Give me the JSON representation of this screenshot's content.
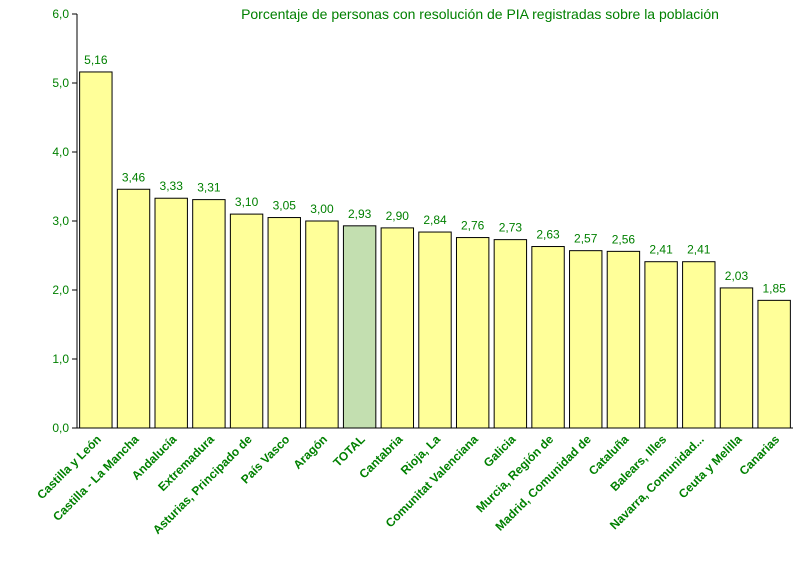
{
  "chart_data": {
    "type": "bar",
    "title": "Porcentaje de personas con resolución de PIA registradas sobre la población",
    "categories": [
      "Castilla y León",
      "Castilla - La Mancha",
      "Andalucía",
      "Extremadura",
      "Asturias, Principado de",
      "País Vasco",
      "Aragón",
      "TOTAL",
      "Cantabria",
      "Rioja, La",
      "Comunitat Valenciana",
      "Galicia",
      "Murcia, Región de",
      "Madrid, Comunidad de",
      "Cataluña",
      "Balears, Illes",
      "Navarra, Comunidad...",
      "Ceuta y Melilla",
      "Canarias"
    ],
    "values": [
      5.16,
      3.46,
      3.33,
      3.31,
      3.1,
      3.05,
      3.0,
      2.93,
      2.9,
      2.84,
      2.76,
      2.73,
      2.63,
      2.57,
      2.56,
      2.41,
      2.41,
      2.03,
      1.85
    ],
    "value_labels": [
      "5,16",
      "3,46",
      "3,33",
      "3,31",
      "3,10",
      "3,05",
      "3,00",
      "2,93",
      "2,90",
      "2,84",
      "2,76",
      "2,73",
      "2,63",
      "2,57",
      "2,56",
      "2,41",
      "2,41",
      "2,03",
      "1,85"
    ],
    "colors": [
      "#ffff99",
      "#ffff99",
      "#ffff99",
      "#ffff99",
      "#ffff99",
      "#ffff99",
      "#ffff99",
      "#c3dfb0",
      "#ffff99",
      "#ffff99",
      "#ffff99",
      "#ffff99",
      "#ffff99",
      "#ffff99",
      "#ffff99",
      "#ffff99",
      "#ffff99",
      "#ffff99",
      "#ffff99"
    ],
    "ylim": [
      0,
      6
    ],
    "yticks": [
      {
        "value": 0,
        "label": "0,0"
      },
      {
        "value": 1,
        "label": "1,0"
      },
      {
        "value": 2,
        "label": "2,0"
      },
      {
        "value": 3,
        "label": "3,0"
      },
      {
        "value": 4,
        "label": "4,0"
      },
      {
        "value": 5,
        "label": "5,0"
      },
      {
        "value": 6,
        "label": "6,0"
      }
    ],
    "grid": false
  }
}
